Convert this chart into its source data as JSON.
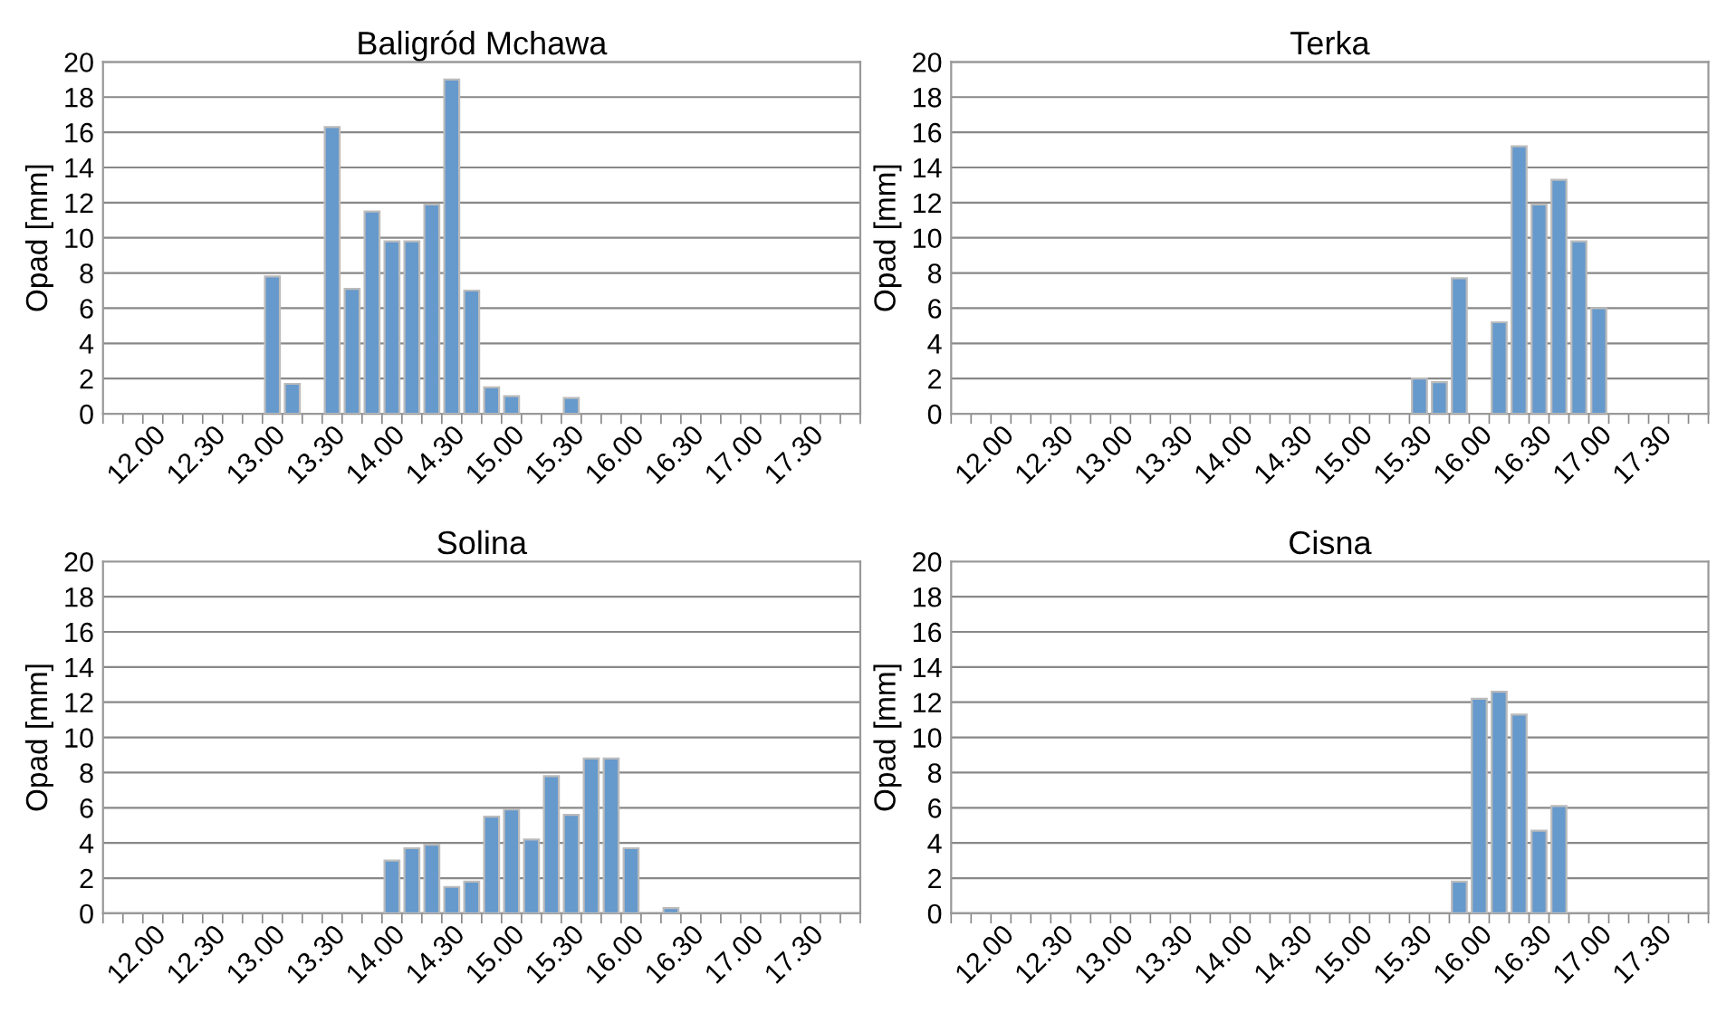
{
  "chart_data": [
    {
      "type": "bar",
      "title": "Baligród Mchawa",
      "ylabel": "Opad [mm]",
      "categories": [
        null,
        null,
        "12.00",
        null,
        null,
        "12.30",
        null,
        null,
        "13.00",
        null,
        null,
        "13.30",
        null,
        null,
        "14.00",
        null,
        null,
        "14.30",
        null,
        null,
        "15.00",
        null,
        null,
        "15.30",
        null,
        null,
        "16.00",
        null,
        null,
        "16.30",
        null,
        null,
        "17.00",
        null,
        null,
        "17.30",
        null,
        null
      ],
      "values": [
        0,
        0,
        0,
        0,
        0,
        0,
        0,
        0,
        7.8,
        1.7,
        0,
        16.3,
        7.1,
        11.5,
        9.8,
        9.8,
        11.9,
        19.0,
        7.0,
        1.5,
        1.0,
        0,
        0,
        0.9,
        0,
        0,
        0,
        0,
        0,
        0,
        0,
        0,
        0,
        0,
        0,
        0,
        0,
        0
      ],
      "color": "#6699cc",
      "ylim": [
        0,
        20
      ],
      "yticks": [
        0,
        2,
        4,
        6,
        8,
        10,
        12,
        14,
        16,
        18,
        20
      ],
      "grid": "y"
    },
    {
      "type": "bar",
      "title": "Terka",
      "ylabel": "Opad [mm]",
      "categories": [
        null,
        null,
        "12.00",
        null,
        null,
        "12.30",
        null,
        null,
        "13.00",
        null,
        null,
        "13.30",
        null,
        null,
        "14.00",
        null,
        null,
        "14.30",
        null,
        null,
        "15.00",
        null,
        null,
        "15.30",
        null,
        null,
        "16.00",
        null,
        null,
        "16.30",
        null,
        null,
        "17.00",
        null,
        null,
        "17.30",
        null,
        null
      ],
      "values": [
        0,
        0,
        0,
        0,
        0,
        0,
        0,
        0,
        0,
        0,
        0,
        0,
        0,
        0,
        0,
        0,
        0,
        0,
        0,
        0,
        0,
        0,
        0,
        2.0,
        1.8,
        7.7,
        0,
        5.2,
        15.2,
        11.9,
        13.3,
        9.8,
        6.0,
        0,
        0,
        0,
        0,
        0
      ],
      "color": "#6699cc",
      "ylim": [
        0,
        20
      ],
      "yticks": [
        0,
        2,
        4,
        6,
        8,
        10,
        12,
        14,
        16,
        18,
        20
      ],
      "grid": "y"
    },
    {
      "type": "bar",
      "title": "Solina",
      "ylabel": "Opad [mm]",
      "categories": [
        null,
        null,
        "12.00",
        null,
        null,
        "12.30",
        null,
        null,
        "13.00",
        null,
        null,
        "13.30",
        null,
        null,
        "14.00",
        null,
        null,
        "14.30",
        null,
        null,
        "15.00",
        null,
        null,
        "15.30",
        null,
        null,
        "16.00",
        null,
        null,
        "16.30",
        null,
        null,
        "17.00",
        null,
        null,
        "17.30",
        null,
        null
      ],
      "values": [
        0,
        0,
        0,
        0,
        0,
        0,
        0,
        0,
        0,
        0,
        0,
        0,
        0,
        0,
        3.0,
        3.7,
        3.9,
        1.5,
        1.8,
        5.5,
        5.9,
        4.2,
        7.8,
        5.6,
        8.8,
        8.8,
        3.7,
        0,
        0.3,
        0,
        0,
        0,
        0,
        0,
        0,
        0,
        0,
        0
      ],
      "color": "#6699cc",
      "ylim": [
        0,
        20
      ],
      "yticks": [
        0,
        2,
        4,
        6,
        8,
        10,
        12,
        14,
        16,
        18,
        20
      ],
      "grid": "y"
    },
    {
      "type": "bar",
      "title": "Cisna",
      "ylabel": "Opad [mm]",
      "categories": [
        null,
        null,
        "12.00",
        null,
        null,
        "12.30",
        null,
        null,
        "13.00",
        null,
        null,
        "13.30",
        null,
        null,
        "14.00",
        null,
        null,
        "14.30",
        null,
        null,
        "15.00",
        null,
        null,
        "15.30",
        null,
        null,
        "16.00",
        null,
        null,
        "16.30",
        null,
        null,
        "17.00",
        null,
        null,
        "17.30",
        null,
        null
      ],
      "values": [
        0,
        0,
        0,
        0,
        0,
        0,
        0,
        0,
        0,
        0,
        0,
        0,
        0,
        0,
        0,
        0,
        0,
        0,
        0,
        0,
        0,
        0,
        0,
        0,
        0,
        1.8,
        12.2,
        12.6,
        11.3,
        4.7,
        6.1,
        0,
        0,
        0,
        0,
        0,
        0,
        0
      ],
      "color": "#6699cc",
      "ylim": [
        0,
        20
      ],
      "yticks": [
        0,
        2,
        4,
        6,
        8,
        10,
        12,
        14,
        16,
        18,
        20
      ],
      "grid": "y"
    }
  ]
}
